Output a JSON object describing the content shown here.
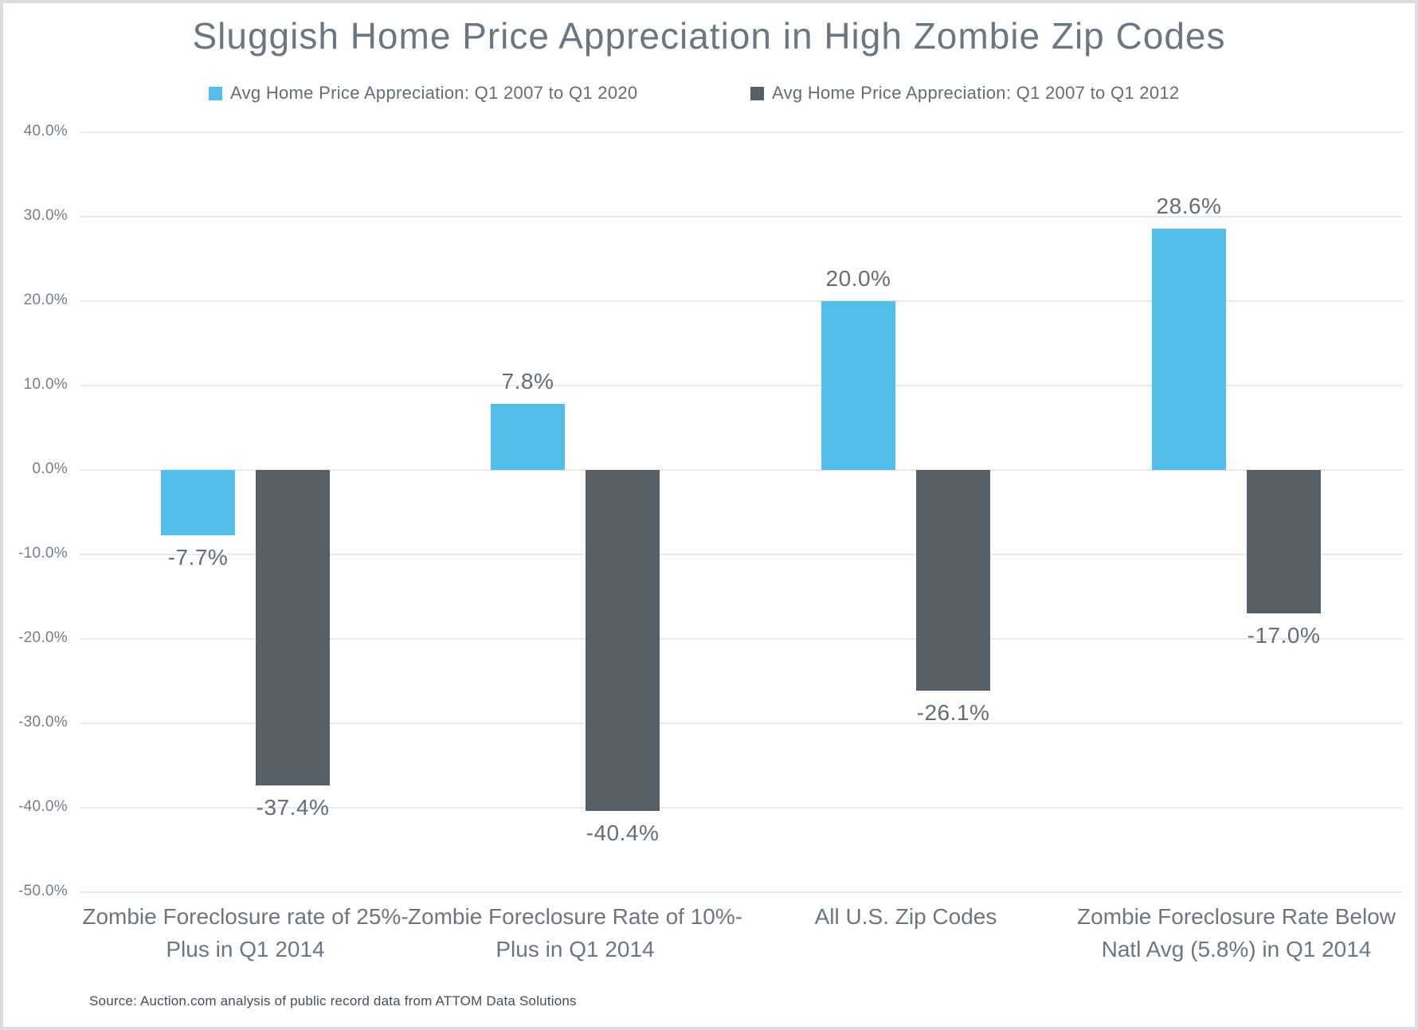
{
  "title": "Sluggish Home Price Appreciation in High Zombie Zip Codes",
  "legend": [
    {
      "label": "Avg Home Price Appreciation: Q1 2007 to Q1 2020",
      "color": "#53bfe8"
    },
    {
      "label": "Avg Home Price Appreciation: Q1 2007 to Q1 2012",
      "color": "#566069"
    }
  ],
  "source": "Source: Auction.com analysis of public record data from ATTOM Data Solutions",
  "chart_data": {
    "type": "bar",
    "title": "Sluggish Home Price Appreciation in High Zombie Zip Codes",
    "categories": [
      "Zombie Foreclosure rate of 25%-Plus in Q1 2014",
      "Zombie Foreclosure Rate of 10%-Plus in Q1 2014",
      "All U.S. Zip Codes",
      "Zombie Foreclosure Rate Below Natl Avg (5.8%) in Q1 2014"
    ],
    "series": [
      {
        "name": "Avg Home Price Appreciation: Q1 2007 to Q1 2020",
        "color": "#53bfe8",
        "values": [
          -7.7,
          7.8,
          20.0,
          28.6
        ],
        "labels": [
          "-7.7%",
          "7.8%",
          "20.0%",
          "28.6%"
        ]
      },
      {
        "name": "Avg Home Price Appreciation: Q1 2007 to Q1 2012",
        "color": "#566069",
        "values": [
          -37.4,
          -40.4,
          -26.1,
          -17.0
        ],
        "labels": [
          "-37.4%",
          "-40.4%",
          "-26.1%",
          "-17.0%"
        ]
      }
    ],
    "xlabel": "",
    "ylabel": "",
    "ylim": [
      -50,
      40
    ],
    "yticks": [
      40,
      30,
      20,
      10,
      0,
      -10,
      -20,
      -30,
      -40,
      -50
    ],
    "ytick_labels": [
      "40.0%",
      "30.0%",
      "20.0%",
      "10.0%",
      "0.0%",
      "-10.0%",
      "-20.0%",
      "-30.0%",
      "-40.0%",
      "-50.0%"
    ],
    "grid": true,
    "legend_position": "top"
  }
}
